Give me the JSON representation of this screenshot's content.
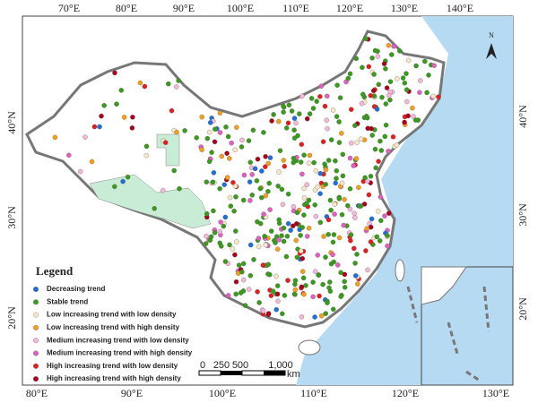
{
  "map": {
    "top_ticks": [
      "70°E",
      "80°E",
      "90°E",
      "100°E",
      "110°E",
      "120°E",
      "130°E",
      "140°E"
    ],
    "bottom_ticks": [
      "80°E",
      "90°E",
      "100°E",
      "110°E",
      "120°E",
      "130°E"
    ],
    "left_ticks": [
      "40°N",
      "30°N",
      "20°N"
    ],
    "right_ticks": [
      "40°N",
      "30°N",
      "20°N"
    ],
    "north": "N",
    "legend": {
      "title": "Legend",
      "items": [
        {
          "label": "Decreasing trend",
          "color": "#1f6fd6"
        },
        {
          "label": "Stable trend",
          "color": "#3a9a1e"
        },
        {
          "label": "Low increasing trend with low density",
          "color": "#f6e7c8"
        },
        {
          "label": "Low increasing trend with high density",
          "color": "#f0a020"
        },
        {
          "label": "Medium increasing trend with low density",
          "color": "#f4b8d8"
        },
        {
          "label": "Medium increasing trend with high density",
          "color": "#e060c0"
        },
        {
          "label": "High increasing trend with low density",
          "color": "#e02020"
        },
        {
          "label": "High increasing trend with high density",
          "color": "#a8001a"
        }
      ]
    },
    "scale": {
      "labels": [
        "0",
        "250",
        "500",
        "1,000"
      ],
      "unit": "km"
    }
  }
}
